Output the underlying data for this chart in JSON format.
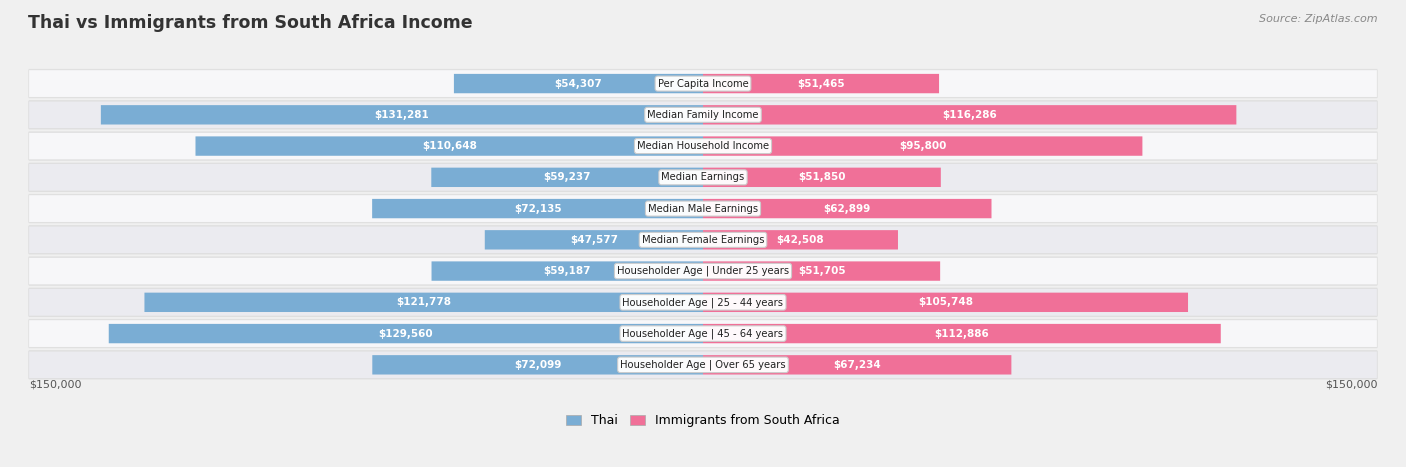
{
  "title": "Thai vs Immigrants from South Africa Income",
  "source": "Source: ZipAtlas.com",
  "categories": [
    "Per Capita Income",
    "Median Family Income",
    "Median Household Income",
    "Median Earnings",
    "Median Male Earnings",
    "Median Female Earnings",
    "Householder Age | Under 25 years",
    "Householder Age | 25 - 44 years",
    "Householder Age | 45 - 64 years",
    "Householder Age | Over 65 years"
  ],
  "thai_values": [
    54307,
    131281,
    110648,
    59237,
    72135,
    47577,
    59187,
    121778,
    129560,
    72099
  ],
  "sa_values": [
    51465,
    116286,
    95800,
    51850,
    62899,
    42508,
    51705,
    105748,
    112886,
    67234
  ],
  "thai_labels": [
    "$54,307",
    "$131,281",
    "$110,648",
    "$59,237",
    "$72,135",
    "$47,577",
    "$59,187",
    "$121,778",
    "$129,560",
    "$72,099"
  ],
  "sa_labels": [
    "$51,465",
    "$116,286",
    "$95,800",
    "$51,850",
    "$62,899",
    "$42,508",
    "$51,705",
    "$105,748",
    "$112,886",
    "$67,234"
  ],
  "thai_color_light": "#adc8e8",
  "thai_color_dark": "#7aadd4",
  "sa_color_light": "#f5b0c8",
  "sa_color_dark": "#f07098",
  "max_value": 150000,
  "bg_color": "#f0f0f0",
  "row_bg_light": "#f8f8f8",
  "row_bg_dark": "#e8e8ee",
  "legend_thai": "Thai",
  "legend_sa": "Immigrants from South Africa",
  "xlabel_left": "$150,000",
  "xlabel_right": "$150,000",
  "inside_label_threshold": 0.28
}
